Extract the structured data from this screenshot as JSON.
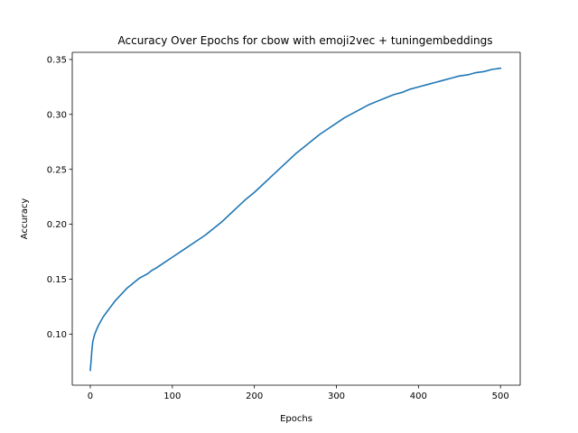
{
  "chart_data": {
    "type": "line",
    "title": "Accuracy Over Epochs for cbow with emoji2vec + tuningembeddings",
    "xlabel": "Epochs",
    "ylabel": "Accuracy",
    "xlim": [
      -22,
      524
    ],
    "ylim": [
      0.0535,
      0.3565
    ],
    "xticks": [
      0,
      100,
      200,
      300,
      400,
      500
    ],
    "xtick_labels": [
      "0",
      "100",
      "200",
      "300",
      "400",
      "500"
    ],
    "yticks": [
      0.1,
      0.15,
      0.2,
      0.25,
      0.3,
      0.35
    ],
    "ytick_labels": [
      "0.10",
      "0.15",
      "0.20",
      "0.25",
      "0.30",
      "0.35"
    ],
    "grid": false,
    "legend": "none",
    "series": [
      {
        "color": "#1f77b4",
        "x": [
          0,
          1,
          2,
          3,
          5,
          7,
          10,
          13,
          16,
          20,
          25,
          30,
          35,
          40,
          45,
          50,
          55,
          60,
          65,
          70,
          75,
          80,
          90,
          100,
          110,
          120,
          130,
          140,
          150,
          160,
          170,
          180,
          190,
          200,
          210,
          220,
          230,
          240,
          250,
          260,
          270,
          280,
          290,
          300,
          310,
          320,
          330,
          340,
          350,
          360,
          370,
          380,
          390,
          400,
          410,
          420,
          430,
          440,
          450,
          460,
          470,
          480,
          490,
          500
        ],
        "values": [
          0.067,
          0.076,
          0.086,
          0.093,
          0.099,
          0.103,
          0.108,
          0.112,
          0.116,
          0.12,
          0.125,
          0.13,
          0.134,
          0.138,
          0.142,
          0.145,
          0.148,
          0.151,
          0.153,
          0.155,
          0.158,
          0.16,
          0.165,
          0.17,
          0.175,
          0.18,
          0.185,
          0.19,
          0.196,
          0.202,
          0.209,
          0.216,
          0.223,
          0.229,
          0.236,
          0.243,
          0.25,
          0.257,
          0.264,
          0.27,
          0.276,
          0.282,
          0.287,
          0.292,
          0.297,
          0.301,
          0.305,
          0.309,
          0.312,
          0.315,
          0.318,
          0.32,
          0.323,
          0.325,
          0.327,
          0.329,
          0.331,
          0.333,
          0.335,
          0.336,
          0.338,
          0.339,
          0.341,
          0.342
        ]
      }
    ]
  }
}
